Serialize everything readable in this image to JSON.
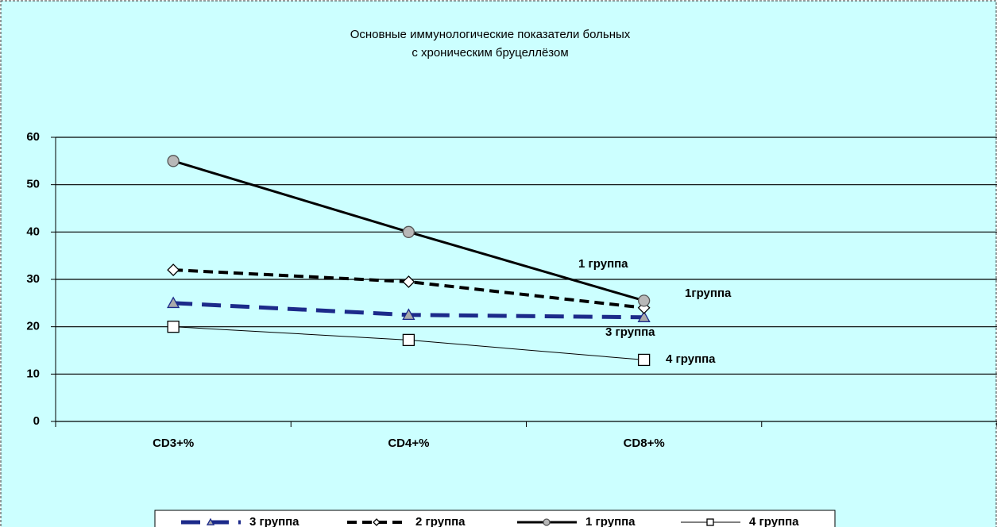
{
  "chart_data": {
    "type": "line",
    "title": [
      "Основные иммунологические показатели больных",
      "с хроническим бруцеллёзом"
    ],
    "categories": [
      "CD3+%",
      "CD4+%",
      "CD8+%",
      null
    ],
    "series": [
      {
        "name": "3 группа",
        "color": "#1c2a8a",
        "marker": "triangle",
        "dash": "24 12",
        "width": 5,
        "values": [
          25,
          22.5,
          22,
          null
        ]
      },
      {
        "name": "2 группа",
        "color": "#000000",
        "marker": "diamond",
        "dash": "12 7",
        "width": 4,
        "values": [
          32,
          29.5,
          24,
          null
        ]
      },
      {
        "name": "1 группа",
        "color": "#000000",
        "marker": "circle",
        "dash": "none",
        "width": 3,
        "values": [
          55,
          40,
          25.5,
          null
        ]
      },
      {
        "name": "4 группа",
        "color": "#000000",
        "marker": "square",
        "dash": "none",
        "width": 1,
        "values": [
          20,
          17.2,
          13,
          null
        ]
      }
    ],
    "annotations": [
      "1 группа",
      "1группа",
      "3 группа",
      "4 группа"
    ],
    "ylim": [
      0,
      60
    ],
    "yticks": [
      0,
      10,
      20,
      30,
      40,
      50,
      60
    ],
    "grid": true
  }
}
